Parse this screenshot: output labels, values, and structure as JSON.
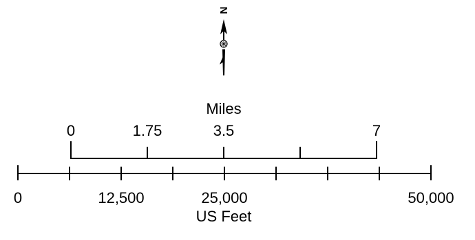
{
  "north_arrow": {
    "letter": "N",
    "icon": "north-arrow-icon"
  },
  "miles_scale": {
    "unit_label": "Miles",
    "ticks": [
      {
        "value": 0,
        "label": "0"
      },
      {
        "value": 1.75,
        "label": "1.75"
      },
      {
        "value": 3.5,
        "label": "3.5"
      },
      {
        "value": 5.25,
        "label": ""
      },
      {
        "value": 7,
        "label": "7"
      }
    ]
  },
  "feet_scale": {
    "unit_label": "US Feet",
    "ticks": [
      {
        "value": 0,
        "label": "0"
      },
      {
        "value": 6250,
        "label": ""
      },
      {
        "value": 12500,
        "label": "12,500"
      },
      {
        "value": 18750,
        "label": ""
      },
      {
        "value": 25000,
        "label": "25,000"
      },
      {
        "value": 31250,
        "label": ""
      },
      {
        "value": 37500,
        "label": ""
      },
      {
        "value": 43750,
        "label": ""
      },
      {
        "value": 50000,
        "label": "50,000"
      }
    ]
  },
  "colors": {
    "ink": "#000000",
    "background": "#ffffff"
  }
}
